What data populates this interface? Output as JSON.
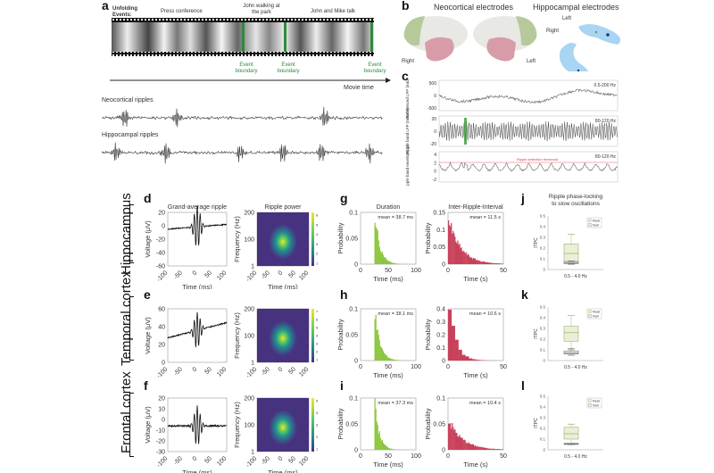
{
  "panel_a": {
    "label": "a",
    "unfolding_label": "Unfolding Events:",
    "events": [
      "Press conference",
      "John walking at the park",
      "John and Mike talk"
    ],
    "boundary_label": "Event boundary",
    "boundary_count": 3,
    "movie_time_label": "Movie time",
    "neocortical_label": "Neocortical ripples",
    "hippocampal_label": "Hippocampal ripples",
    "boundary_color": "#2e8b3a"
  },
  "panel_b": {
    "label": "b",
    "neocortical_title": "Neocortical electrodes",
    "hippocampal_title": "Hippocampal electrodes",
    "right_label": "Right",
    "left_label": "Left",
    "hc_left_label": "Left",
    "hc_right_label": "Right"
  },
  "panel_c": {
    "label": "c",
    "traces": [
      {
        "ylabel": "Referenced LFP (microV)",
        "band": "0.5-200 Hz",
        "yticks": [
          "500",
          "0",
          "-500"
        ]
      },
      {
        "ylabel": "Ripple band LFP (microV)",
        "band": "80-120 Hz",
        "yticks": [
          "20",
          "0",
          "-20"
        ]
      },
      {
        "ylabel": "Ripple band envelope (z)",
        "band": "80-120 Hz",
        "yticks": [
          "4",
          "2",
          "0",
          "-2"
        ],
        "threshold_label": "Ripple detection threshold"
      }
    ]
  },
  "rows": [
    {
      "name": "Hippocampus",
      "panels": [
        "d",
        "g",
        "j"
      ]
    },
    {
      "name": "Temporal cortex",
      "panels": [
        "e",
        "h",
        "k"
      ]
    },
    {
      "name": "Frontal cortex",
      "panels": [
        "f",
        "i",
        "l"
      ]
    }
  ],
  "column_titles": {
    "grand_average": "Grand-average ripple",
    "ripple_power": "Ripple power",
    "duration": "Duration",
    "iri": "Inter-Ripple-Interval",
    "phase_locking": "Ripple phase-locking to slow oscillations"
  },
  "chart_data": [
    {
      "id": "d",
      "type": "line",
      "title": "Grand-average ripple",
      "xlabel": "Time (ms)",
      "ylabel": "Voltage (μV)",
      "xlim": [
        -100,
        100
      ],
      "ylim": [
        -60,
        20
      ],
      "xticks": [
        "-100",
        "-50",
        "0",
        "50",
        "100"
      ],
      "yticks": [
        "20",
        "0",
        "-20",
        "-40",
        "-60"
      ],
      "baseline": -5,
      "amplitude": 32,
      "offset_end": 2
    },
    {
      "id": "e",
      "type": "line",
      "title": "",
      "xlabel": "Time (ms)",
      "ylabel": "Voltage (μV)",
      "xlim": [
        -100,
        100
      ],
      "ylim": [
        -10,
        60
      ],
      "xticks": [
        "-100",
        "-50",
        "0",
        "50",
        "100"
      ],
      "yticks": [
        "60",
        "40",
        "20",
        "0"
      ],
      "baseline": 22,
      "amplitude": 24,
      "offset_end": 42
    },
    {
      "id": "f",
      "type": "line",
      "title": "",
      "xlabel": "Time (ms)",
      "ylabel": "Voltage (μV)",
      "xlim": [
        -100,
        100
      ],
      "ylim": [
        -30,
        20
      ],
      "xticks": [
        "-100",
        "-50",
        "0",
        "50",
        "100"
      ],
      "yticks": [
        "20",
        "10",
        "0",
        "-10",
        "-20",
        "-30"
      ],
      "baseline": -6,
      "amplitude": 19,
      "offset_end": -6
    },
    {
      "id": "d2",
      "type": "heatmap",
      "title": "Ripple power",
      "xlabel": "Time (ms)",
      "ylabel": "Frequency (Hz)",
      "xticks": [
        "-100",
        "-50",
        "0",
        "50",
        "100"
      ],
      "yticks": [
        "200",
        "100",
        "1"
      ],
      "colorbar_ticks": [
        "6",
        "5",
        "4",
        "3",
        "2",
        "1"
      ],
      "peak_time_ms": 0,
      "peak_freq_hz": 90
    },
    {
      "id": "e2",
      "type": "heatmap",
      "title": "",
      "xlabel": "Time (ms)",
      "ylabel": "Frequency (Hz)",
      "xticks": [
        "-100",
        "-50",
        "0",
        "50",
        "100"
      ],
      "yticks": [
        "200",
        "100",
        "1"
      ],
      "colorbar_ticks": [
        "7",
        "6",
        "5",
        "4",
        "3",
        "2",
        "1"
      ],
      "peak_time_ms": 0,
      "peak_freq_hz": 90
    },
    {
      "id": "f2",
      "type": "heatmap",
      "title": "",
      "xlabel": "Time (ms)",
      "ylabel": "Frequency (Hz)",
      "xticks": [
        "-100",
        "-50",
        "0",
        "50",
        "100"
      ],
      "yticks": [
        "200",
        "100",
        "1"
      ],
      "colorbar_ticks": [
        "5",
        "4",
        "3",
        "2",
        "1"
      ],
      "peak_time_ms": 0,
      "peak_freq_hz": 90
    },
    {
      "id": "g",
      "type": "bar",
      "title": "Duration",
      "xlabel": "Time (ms)",
      "ylabel": "Probability",
      "xlim": [
        0,
        100
      ],
      "ylim": [
        0,
        0.1
      ],
      "xticks": [
        "0",
        "50",
        "100"
      ],
      "yticks": [
        "0.1",
        "0.05",
        "0"
      ],
      "annotation": "mean = 38.7 ms",
      "color": "#8cc63f",
      "onset": 25,
      "peak": 0.098,
      "decay": 9
    },
    {
      "id": "g2",
      "type": "bar",
      "title": "Inter-Ripple-Interval",
      "xlabel": "Time (s)",
      "ylabel": "Probability",
      "xlim": [
        0,
        50
      ],
      "ylim": [
        0,
        0.15
      ],
      "xticks": [
        "0",
        "50"
      ],
      "yticks": [
        "0.15",
        "0.1",
        "0.05",
        "0"
      ],
      "annotation": "mean = 11.5 s",
      "color": "#c8415a",
      "onset": 0,
      "peak": 0.13,
      "decay": 11
    },
    {
      "id": "h",
      "type": "bar",
      "title": "",
      "xlabel": "Time (ms)",
      "ylabel": "Probability",
      "xlim": [
        0,
        100
      ],
      "ylim": [
        0,
        0.1
      ],
      "xticks": [
        "0",
        "50",
        "100"
      ],
      "yticks": [
        "0.1",
        "0.05",
        "0"
      ],
      "annotation": "mean = 38.1 ms",
      "color": "#8cc63f",
      "onset": 25,
      "peak": 0.095,
      "decay": 9
    },
    {
      "id": "h2",
      "type": "bar",
      "title": "",
      "xlabel": "Time (s)",
      "ylabel": "Probability",
      "xlim": [
        0,
        50
      ],
      "ylim": [
        0,
        0.4
      ],
      "xticks": [
        "0",
        "50"
      ],
      "yticks": [
        "0.4",
        "0.3",
        "0.2",
        "0.1",
        "0"
      ],
      "annotation": "mean = 10.6 s",
      "color": "#c8415a",
      "onset": 0,
      "peak": 0.4,
      "decay": 6,
      "coarse": true
    },
    {
      "id": "i",
      "type": "bar",
      "title": "",
      "xlabel": "Time (ms)",
      "ylabel": "Probability",
      "xlim": [
        0,
        100
      ],
      "ylim": [
        0,
        0.1
      ],
      "xticks": [
        "0",
        "50",
        "100"
      ],
      "yticks": [
        "0.1",
        "0.05",
        "0"
      ],
      "annotation": "mean = 37.3 ms",
      "color": "#8cc63f",
      "onset": 25,
      "peak": 0.09,
      "decay": 8
    },
    {
      "id": "i2",
      "type": "bar",
      "title": "",
      "xlabel": "Time (s)",
      "ylabel": "Probability",
      "xlim": [
        0,
        50
      ],
      "ylim": [
        0,
        0.1
      ],
      "xticks": [
        "0",
        "50"
      ],
      "yticks": [
        "0.1",
        "0.05",
        "0"
      ],
      "annotation": "mean = 10.4 s",
      "color": "#c8415a",
      "onset": 0,
      "peak": 0.06,
      "decay": 12
    },
    {
      "id": "j",
      "type": "box",
      "title": "Ripple phase-locking to slow oscillations",
      "xlabel": "0.5 - 4.0 Hz",
      "ylabel": "ITPC",
      "ylim": [
        0,
        0.5
      ],
      "yticks": [
        "0.5",
        "0.4",
        "0.3",
        "0.2",
        "0.1",
        "0"
      ],
      "legend": [
        "Real",
        "Null"
      ],
      "legend_position": "top-right",
      "real": {
        "min": 0.05,
        "q1": 0.07,
        "median": 0.15,
        "q3": 0.24,
        "max": 0.33
      },
      "null": {
        "min": 0.05,
        "q1": 0.055,
        "median": 0.065,
        "q3": 0.075,
        "max": 0.08
      }
    },
    {
      "id": "k",
      "type": "box",
      "title": "",
      "xlabel": "0.5 - 4.0 Hz",
      "ylabel": "ITPC",
      "ylim": [
        0,
        0.5
      ],
      "yticks": [
        "0.5",
        "0.4",
        "0.3",
        "0.2",
        "0.1",
        "0"
      ],
      "legend": [
        "Real",
        "Null"
      ],
      "legend_position": "top-right",
      "real": {
        "min": 0.1,
        "q1": 0.18,
        "median": 0.26,
        "q3": 0.32,
        "max": 0.42
      },
      "null": {
        "min": 0.05,
        "q1": 0.06,
        "median": 0.07,
        "q3": 0.09,
        "max": 0.11
      }
    },
    {
      "id": "l",
      "type": "box",
      "title": "",
      "xlabel": "0.5 - 4.0 Hz",
      "ylabel": "ITPC",
      "ylim": [
        0,
        0.5
      ],
      "yticks": [
        "0.5",
        "0.4",
        "0.3",
        "0.2",
        "0.1",
        "0"
      ],
      "legend": [
        "Real",
        "Null"
      ],
      "legend_position": "top-right",
      "real": {
        "min": 0.05,
        "q1": 0.1,
        "median": 0.15,
        "q3": 0.21,
        "max": 0.24
      },
      "null": {
        "min": 0.05,
        "q1": 0.05,
        "median": 0.055,
        "q3": 0.06,
        "max": 0.06
      }
    }
  ]
}
